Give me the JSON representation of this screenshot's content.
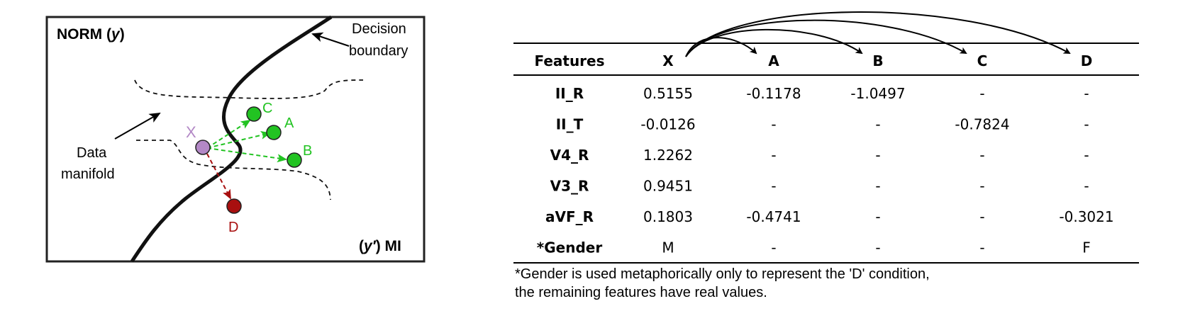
{
  "diagram": {
    "label_norm": "NORM",
    "label_norm_var": "y",
    "label_mi_var": "y′",
    "label_mi": "MI",
    "decision_boundary_line1": "Decision",
    "decision_boundary_line2": "boundary",
    "data_manifold_line1": "Data",
    "data_manifold_line2": "manifold",
    "points": {
      "x": "X",
      "a": "A",
      "b": "B",
      "c": "C",
      "d": "D"
    },
    "colors": {
      "x": "#b388c6",
      "counterfactual": "#22c322",
      "d": "#a80f0f",
      "arrow_green": "#22c322",
      "arrow_red": "#a80f0f"
    }
  },
  "table": {
    "headers": [
      "Features",
      "X",
      "A",
      "B",
      "C",
      "D"
    ],
    "rows": [
      [
        "II_R",
        "0.5155",
        "-0.1178",
        "-1.0497",
        "-",
        "-"
      ],
      [
        "II_T",
        "-0.0126",
        "-",
        "-",
        "-0.7824",
        "-"
      ],
      [
        "V4_R",
        "1.2262",
        "-",
        "-",
        "-",
        "-"
      ],
      [
        "V3_R",
        "0.9451",
        "-",
        "-",
        "-",
        "-"
      ],
      [
        "aVF_R",
        "0.1803",
        "-0.4741",
        "-",
        "-",
        "-0.3021"
      ],
      [
        "*Gender",
        "M",
        "-",
        "-",
        "-",
        "F"
      ]
    ]
  },
  "footnote": {
    "line1": "*Gender is used metaphorically only to represent the 'D' condition,",
    "line2": "the remaining features have real values."
  }
}
